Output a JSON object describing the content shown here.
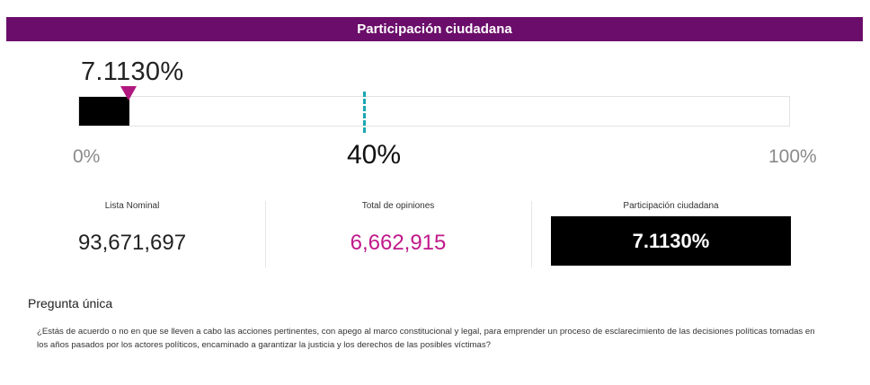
{
  "header": {
    "title": "Participación ciudadana"
  },
  "progress": {
    "current_label": "7.1130%",
    "current_fraction": 0.07113,
    "goal_fraction": 0.4,
    "min_label": "0%",
    "goal_label": "40%",
    "max_label": "100%"
  },
  "stats": {
    "lista_nominal": {
      "label": "Lista Nominal",
      "value": "93,671,697"
    },
    "total_opiniones": {
      "label": "Total de opiniones",
      "value": "6,662,915"
    },
    "participacion": {
      "label": "Participación ciudadana",
      "value": "7.1130%"
    }
  },
  "question": {
    "title": "Pregunta única",
    "text": "¿Estás de acuerdo o no en que se lleven a cabo las acciones pertinentes, con apego al marco constitucional y legal, para emprender un proceso de esclarecimiento de las decisiones políticas tomadas en los años pasados por los actores políticos, encaminado a garantizar la justicia y los derechos de las posibles víctimas?"
  },
  "colors": {
    "header_bg": "#6b0d6a",
    "marker": "#b0187f",
    "goal_line": "#1aa7b3",
    "opinions_value": "#c0198a",
    "bar_fill": "#000000"
  }
}
